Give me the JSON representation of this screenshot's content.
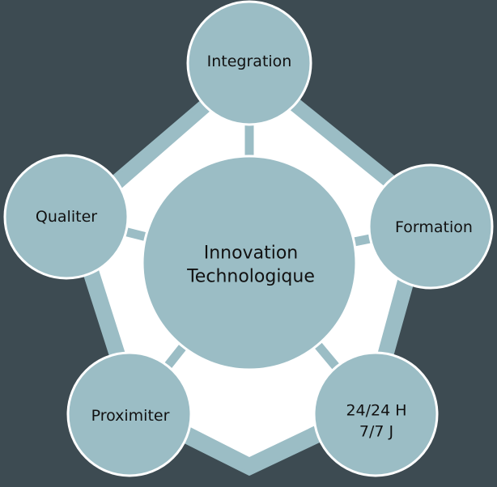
{
  "diagram": {
    "colors": {
      "background": "#3d4b52",
      "node_fill": "#9bbdc5",
      "pentagon_fill": "#ffffff",
      "pentagon_border": "#9bbdc5",
      "text": "#111111"
    },
    "center": {
      "line1": "Innovation",
      "line2": "Technologique"
    },
    "nodes": {
      "integration": {
        "label": "Integration"
      },
      "formation": {
        "label": "Formation"
      },
      "support": {
        "line1": "24/24 H",
        "line2": "7/7 J"
      },
      "proximiter": {
        "label": "Proximiter"
      },
      "qualiter": {
        "label": "Qualiter"
      }
    }
  }
}
